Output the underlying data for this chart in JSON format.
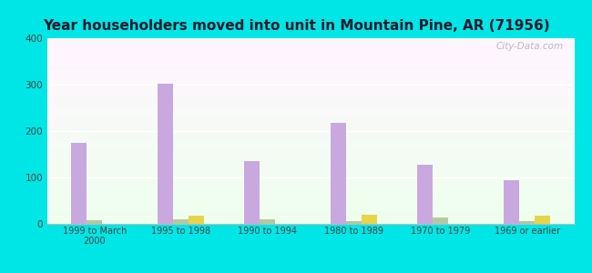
{
  "title": "Year householders moved into unit in Mountain Pine, AR (71956)",
  "categories": [
    "1999 to March\n2000",
    "1995 to 1998",
    "1990 to 1994",
    "1980 to 1989",
    "1970 to 1979",
    "1969 or earlier"
  ],
  "white_non_hispanic": [
    175,
    302,
    136,
    217,
    127,
    95
  ],
  "black": [
    7,
    9,
    9,
    5,
    14,
    5
  ],
  "two_or_more": [
    0,
    18,
    0,
    19,
    0,
    18
  ],
  "white_color": "#c9a8e0",
  "black_color": "#b5c8a0",
  "two_or_more_color": "#e8d44a",
  "background_color": "#00e5e5",
  "ylim": [
    0,
    400
  ],
  "yticks": [
    0,
    100,
    200,
    300,
    400
  ],
  "bar_width": 0.18,
  "watermark": "City-Data.com"
}
